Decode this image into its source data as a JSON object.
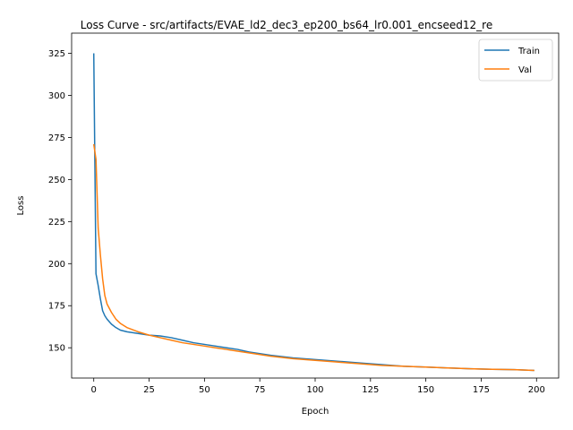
{
  "chart_data": {
    "type": "line",
    "title": "Loss Curve - src/artifacts/EVAE_ld2_dec3_ep200_bs64_lr0.001_encseed12_re",
    "xlabel": "Epoch",
    "ylabel": "Loss",
    "xlim": [
      -10,
      210
    ],
    "ylim": [
      132,
      337
    ],
    "xticks": [
      0,
      25,
      50,
      75,
      100,
      125,
      150,
      175,
      200
    ],
    "yticks": [
      150,
      175,
      200,
      225,
      250,
      275,
      300,
      325
    ],
    "grid": false,
    "legend_position": "top-right",
    "series": [
      {
        "name": "Train",
        "color": "#1f77b4",
        "x": [
          0,
          1,
          2,
          3,
          4,
          5,
          6,
          8,
          10,
          12,
          15,
          20,
          25,
          30,
          35,
          40,
          45,
          50,
          55,
          60,
          65,
          70,
          75,
          80,
          90,
          100,
          110,
          120,
          130,
          140,
          150,
          160,
          170,
          180,
          190,
          199
        ],
        "y": [
          325,
          194,
          187,
          179,
          172,
          169,
          167,
          164,
          162,
          160.5,
          159.5,
          158.5,
          157.5,
          157,
          156,
          154.5,
          153,
          152,
          151,
          150,
          149,
          147.5,
          146.5,
          145.5,
          144,
          143,
          142,
          141,
          140,
          139,
          138.5,
          138,
          137.5,
          137.2,
          137,
          136.5
        ]
      },
      {
        "name": "Val",
        "color": "#ff7f0e",
        "x": [
          0,
          1,
          2,
          3,
          4,
          5,
          6,
          8,
          10,
          12,
          15,
          20,
          25,
          30,
          35,
          40,
          45,
          50,
          55,
          60,
          65,
          70,
          75,
          80,
          90,
          100,
          110,
          120,
          130,
          140,
          150,
          160,
          170,
          180,
          190,
          199
        ],
        "y": [
          271,
          262,
          221,
          205,
          191,
          181,
          176,
          171,
          167,
          164.5,
          162,
          159.5,
          157.5,
          156,
          154.5,
          153,
          152,
          151,
          150,
          149,
          148,
          147,
          146,
          145,
          143.5,
          142.5,
          141.5,
          140.5,
          139.5,
          139,
          138.5,
          138,
          137.5,
          137.2,
          137,
          136.5
        ]
      }
    ]
  }
}
